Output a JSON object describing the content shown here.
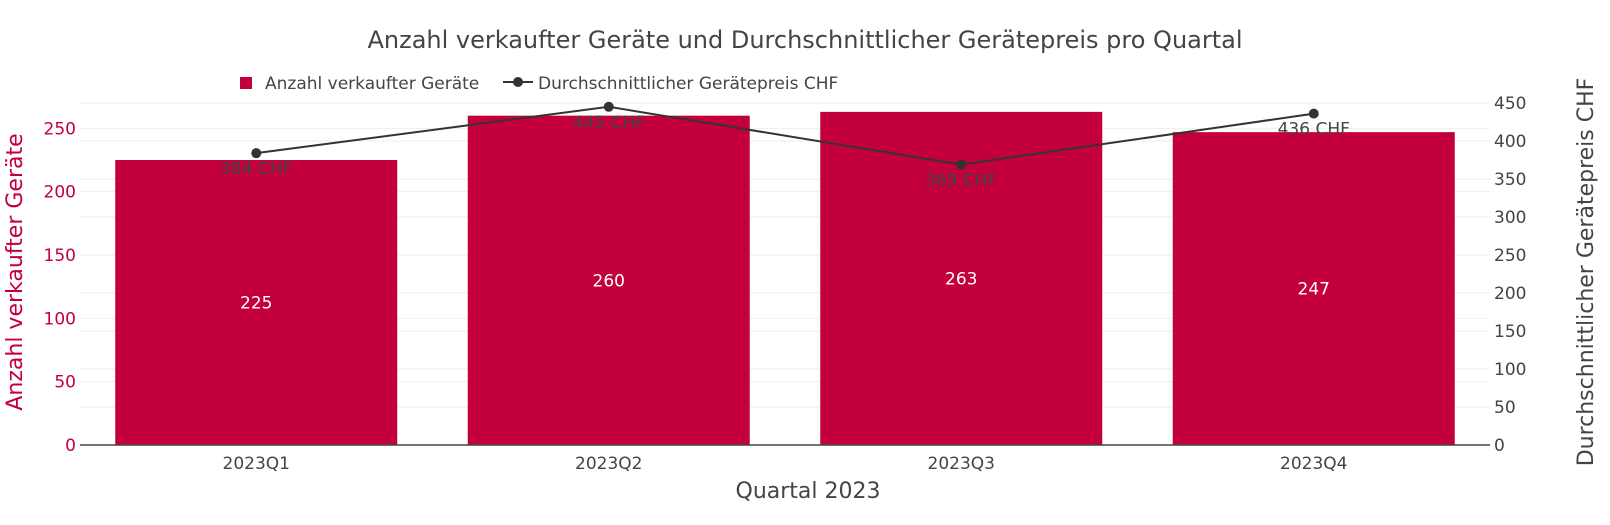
{
  "chart_data": {
    "type": "bar",
    "title": "Anzahl verkaufter Geräte und Durchschnittlicher Gerätepreis pro Quartal",
    "xlabel": "Quartal 2023",
    "categories": [
      "2023Q1",
      "2023Q2",
      "2023Q3",
      "2023Q4"
    ],
    "series": [
      {
        "name": "Anzahl verkaufter Geräte",
        "kind": "bar",
        "axis": "left",
        "values": [
          225,
          260,
          263,
          247
        ],
        "labels": [
          "225",
          "260",
          "263",
          "247"
        ]
      },
      {
        "name": "Durchschnittlicher Gerätepreis CHF",
        "kind": "line",
        "axis": "right",
        "values": [
          384,
          445,
          369,
          436
        ],
        "labels": [
          "384 CHF",
          "445 CHF",
          "369 CHF",
          "436 CHF"
        ]
      }
    ],
    "y_left": {
      "label": "Anzahl verkaufter Geräte",
      "ticks": [
        0,
        50,
        100,
        150,
        200,
        250
      ],
      "range": [
        0,
        270
      ]
    },
    "y_right": {
      "label": "Durchschnittlicher Gerätepreis CHF",
      "ticks": [
        0,
        50,
        100,
        150,
        200,
        250,
        300,
        350,
        400,
        450
      ],
      "range": [
        0,
        450
      ]
    },
    "legend_position": "top-left",
    "grid": true
  },
  "colors": {
    "bar": "#c4003c",
    "line": "#333333",
    "left_axis_text": "#c4003c",
    "text": "#444444",
    "grid": "#eeeeee",
    "axis_line": "#444444"
  }
}
